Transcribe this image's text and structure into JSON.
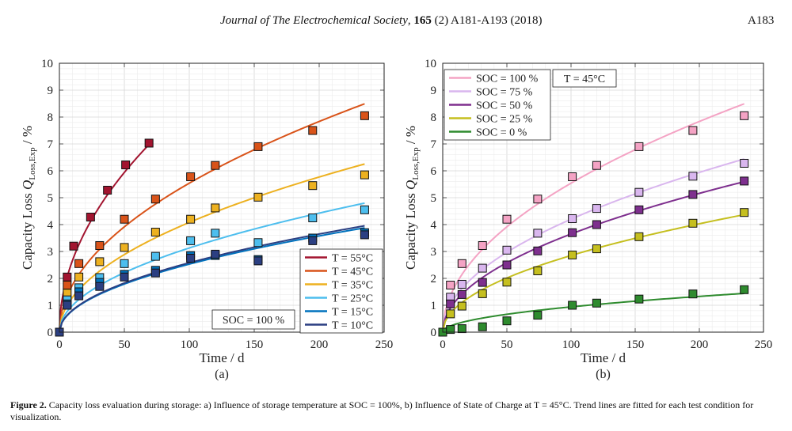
{
  "header": {
    "journal_name": "Journal of The Electrochemical Society",
    "volume": "165",
    "issue_pages": "(2) A181-A193 (2018)",
    "page_number": "A183"
  },
  "caption": {
    "label": "Figure 2.",
    "text": "Capacity loss evaluation during storage: a) Influence of storage temperature at SOC = 100%, b) Influence of State of Charge at T = 45°C. Trend lines are fitted for each test condition for visualization."
  },
  "chart_data": [
    {
      "type": "scatter",
      "panel_label": "(a)",
      "xlabel": "Time / d",
      "ylabel": "Capacity Loss Q_Loss,Exp / %",
      "xlim": [
        0,
        250
      ],
      "ylim": [
        0,
        10
      ],
      "xticks": [
        0,
        50,
        100,
        150,
        200,
        250
      ],
      "yticks": [
        0,
        1,
        2,
        3,
        4,
        5,
        6,
        7,
        8,
        9,
        10
      ],
      "grid": true,
      "legend_position": "lower-right",
      "annotation": "SOC = 100 %",
      "series": [
        {
          "name": "T = 55°C",
          "color": "#A2142F",
          "x": [
            0,
            6,
            11,
            24,
            37,
            51,
            69
          ],
          "y": [
            0,
            2.05,
            3.2,
            4.28,
            5.28,
            6.22,
            7.03
          ],
          "fit_k": 0.84,
          "fit_xmax": 69
        },
        {
          "name": "T = 45°C",
          "color": "#D95319",
          "x": [
            0,
            6,
            15,
            31,
            50,
            74,
            101,
            120,
            153,
            195,
            235
          ],
          "y": [
            0,
            1.75,
            2.55,
            3.22,
            4.2,
            4.95,
            5.78,
            6.2,
            6.9,
            7.5,
            8.05
          ],
          "fit_k": 0.554,
          "fit_xmax": 235
        },
        {
          "name": "T = 35°C",
          "color": "#EDB120",
          "x": [
            0,
            6,
            15,
            31,
            50,
            74,
            101,
            120,
            153,
            195,
            235
          ],
          "y": [
            0,
            1.45,
            2.05,
            2.62,
            3.15,
            3.72,
            4.2,
            4.62,
            5.02,
            5.45,
            5.85
          ],
          "fit_k": 0.408,
          "fit_xmax": 235
        },
        {
          "name": "T = 25°C",
          "color": "#4DBEEE",
          "x": [
            0,
            6,
            15,
            31,
            50,
            74,
            101,
            120,
            153,
            195,
            235
          ],
          "y": [
            0,
            1.2,
            1.65,
            2.03,
            2.55,
            2.82,
            3.4,
            3.68,
            3.33,
            4.25,
            4.55
          ],
          "fit_k": 0.313,
          "fit_xmax": 235
        },
        {
          "name": "T = 15°C",
          "color": "#0072BD",
          "x": [
            0,
            6,
            15,
            31,
            50,
            74,
            101,
            120,
            153,
            195,
            235
          ],
          "y": [
            0,
            1.05,
            1.5,
            1.85,
            2.15,
            2.3,
            2.85,
            2.85,
            2.7,
            3.5,
            3.7
          ],
          "fit_k": 0.253,
          "fit_xmax": 235
        },
        {
          "name": "T = 10°C",
          "color": "#2B3F82",
          "x": [
            0,
            6,
            15,
            31,
            50,
            74,
            101,
            120,
            153,
            195,
            235
          ],
          "y": [
            0,
            1.0,
            1.35,
            1.7,
            2.05,
            2.2,
            2.75,
            2.9,
            2.65,
            3.4,
            3.62
          ],
          "fit_k": 0.258,
          "fit_xmax": 235
        }
      ]
    },
    {
      "type": "scatter",
      "panel_label": "(b)",
      "xlabel": "Time / d",
      "ylabel": "Capacity Loss Q_Loss,Exp / %",
      "xlim": [
        0,
        250
      ],
      "ylim": [
        0,
        10
      ],
      "xticks": [
        0,
        50,
        100,
        150,
        200,
        250
      ],
      "yticks": [
        0,
        1,
        2,
        3,
        4,
        5,
        6,
        7,
        8,
        9,
        10
      ],
      "grid": true,
      "legend_position": "top-left",
      "annotation": "T = 45°C",
      "series": [
        {
          "name": "SOC = 100 %",
          "color": "#F4A3C4",
          "x": [
            0,
            6,
            15,
            31,
            50,
            74,
            101,
            120,
            153,
            195,
            235
          ],
          "y": [
            0,
            1.75,
            2.55,
            3.22,
            4.2,
            4.95,
            5.78,
            6.2,
            6.9,
            7.5,
            8.05
          ],
          "fit_k": 0.554,
          "fit_xmax": 235
        },
        {
          "name": "SOC = 75 %",
          "color": "#D9B6EE",
          "x": [
            0,
            6,
            15,
            31,
            50,
            74,
            101,
            120,
            153,
            195,
            235
          ],
          "y": [
            0,
            1.3,
            1.78,
            2.38,
            3.05,
            3.68,
            4.22,
            4.6,
            5.2,
            5.8,
            6.28
          ],
          "fit_k": 0.42,
          "fit_xmax": 235
        },
        {
          "name": "SOC = 50 %",
          "color": "#7E2F8E",
          "x": [
            0,
            6,
            15,
            31,
            50,
            74,
            101,
            120,
            153,
            195,
            235
          ],
          "y": [
            0,
            1.05,
            1.4,
            1.85,
            2.5,
            3.02,
            3.7,
            4.0,
            4.55,
            5.12,
            5.62
          ],
          "fit_k": 0.365,
          "fit_xmax": 235
        },
        {
          "name": "SOC = 25 %",
          "color": "#C5BF1F",
          "x": [
            0,
            6,
            15,
            31,
            50,
            74,
            101,
            120,
            153,
            195,
            235
          ],
          "y": [
            0,
            0.68,
            0.97,
            1.43,
            1.86,
            2.28,
            2.87,
            3.1,
            3.55,
            4.05,
            4.45
          ],
          "fit_k": 0.285,
          "fit_xmax": 235
        },
        {
          "name": "SOC = 0 %",
          "color": "#2E8B2E",
          "x": [
            0,
            6,
            15,
            31,
            50,
            74,
            101,
            120,
            153,
            195,
            235
          ],
          "y": [
            0,
            0.1,
            0.13,
            0.2,
            0.42,
            0.63,
            1.0,
            1.08,
            1.23,
            1.42,
            1.58
          ],
          "fit_k": 0.094,
          "fit_xmax": 235
        }
      ]
    }
  ]
}
